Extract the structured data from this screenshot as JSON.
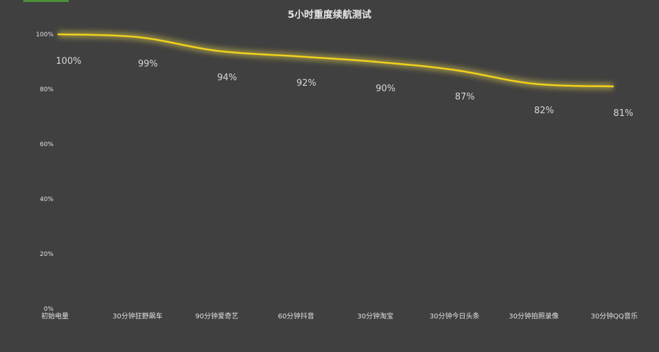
{
  "chart_data": {
    "type": "line",
    "title": "5小时重度续航测试",
    "xlabel": "",
    "ylabel": "",
    "categories": [
      "初始电量",
      "30分钟狂野飙车",
      "90分钟爱奇艺",
      "60分钟抖音",
      "30分钟淘宝",
      "30分钟今日头条",
      "30分钟拍照录像",
      "30分钟QQ音乐"
    ],
    "series": [
      {
        "values": [
          100,
          99,
          94,
          92,
          90,
          87,
          82,
          81
        ],
        "labels": [
          "100%",
          "99%",
          "94%",
          "92%",
          "90%",
          "87%",
          "82%",
          "81%"
        ],
        "color": "#f2d21b"
      }
    ],
    "ylim": [
      0,
      100
    ],
    "y_ticks": [
      0,
      20,
      40,
      60,
      80,
      100
    ],
    "y_tick_labels": [
      "0%",
      "20%",
      "40%",
      "60%",
      "80%",
      "100%"
    ],
    "grid": false,
    "legend": "none"
  },
  "colors": {
    "background": "#404040",
    "line": "#f2d21b",
    "glow": "#ffe94a",
    "text": "#e0e0e0"
  }
}
